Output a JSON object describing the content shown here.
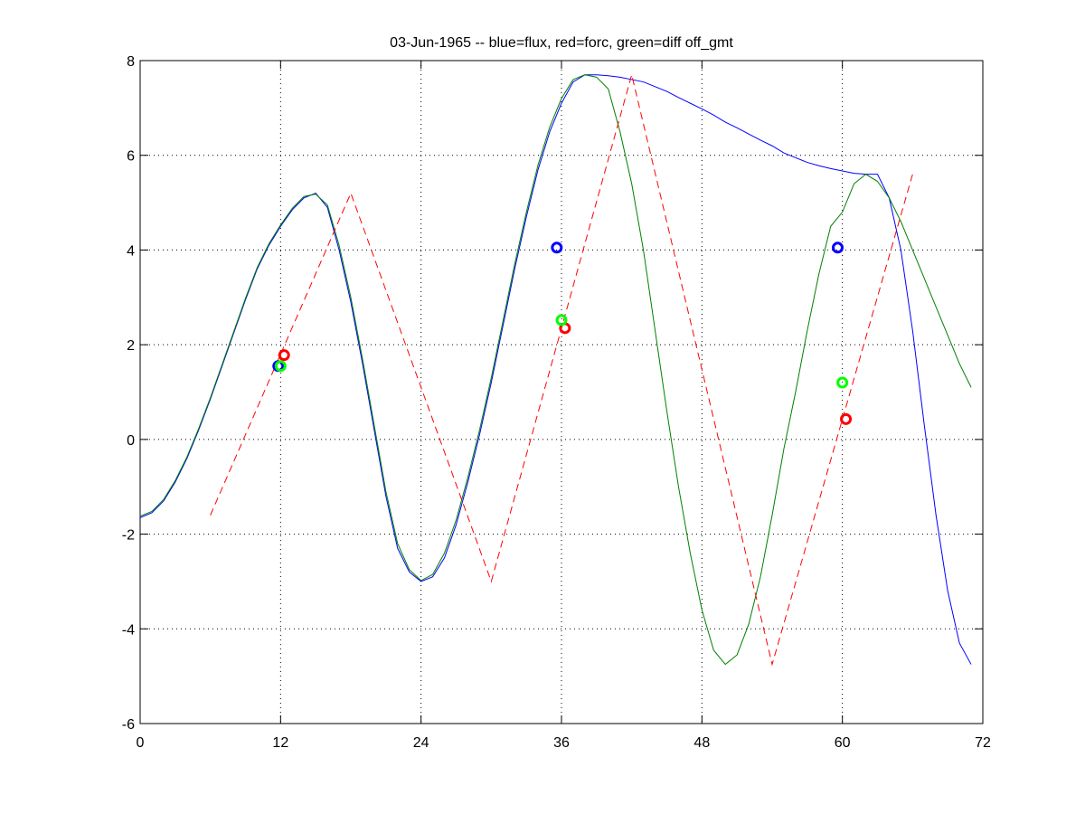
{
  "chart_data": {
    "type": "line",
    "title": "03-Jun-1965 -- blue=flux, red=forc, green=diff off_gmt",
    "xlim": [
      0,
      72
    ],
    "xticks": [
      0,
      12,
      24,
      36,
      48,
      60,
      72
    ],
    "ylim": [
      -6,
      8
    ],
    "yticks": [
      -6,
      -4,
      -2,
      0,
      2,
      4,
      6,
      8
    ],
    "grid": true,
    "series": [
      {
        "color": "#0000ff",
        "style": "solid",
        "x": [
          0,
          1,
          2,
          3,
          4,
          5,
          6,
          7,
          8,
          9,
          10,
          11,
          12,
          13,
          14,
          15,
          16,
          17,
          18,
          19,
          20,
          21,
          22,
          23,
          24,
          25,
          26,
          27,
          28,
          29,
          30,
          31,
          32,
          33,
          34,
          35,
          36,
          37,
          38,
          39,
          40,
          41,
          42,
          43,
          44,
          45,
          46,
          47,
          48,
          49,
          50,
          51,
          52,
          53,
          54,
          55,
          56,
          57,
          58,
          59,
          60,
          61,
          62,
          63,
          64,
          65,
          66,
          67,
          68,
          69,
          70,
          71
        ],
        "values": [
          -1.65,
          -1.55,
          -1.3,
          -0.9,
          -0.4,
          0.2,
          0.85,
          1.55,
          2.25,
          2.95,
          3.6,
          4.1,
          4.5,
          4.85,
          5.1,
          5.2,
          4.9,
          4.0,
          2.9,
          1.6,
          0.2,
          -1.2,
          -2.3,
          -2.8,
          -3.0,
          -2.9,
          -2.5,
          -1.8,
          -0.9,
          0.1,
          1.2,
          2.4,
          3.6,
          4.7,
          5.7,
          6.5,
          7.1,
          7.55,
          7.7,
          7.7,
          7.68,
          7.65,
          7.6,
          7.55,
          7.45,
          7.35,
          7.22,
          7.1,
          6.98,
          6.85,
          6.7,
          6.58,
          6.45,
          6.32,
          6.2,
          6.05,
          5.95,
          5.85,
          5.78,
          5.72,
          5.67,
          5.62,
          5.6,
          5.6,
          5.1,
          4.0,
          2.3,
          0.3,
          -1.6,
          -3.2,
          -4.3,
          -4.75
        ]
      },
      {
        "color": "#008000",
        "style": "solid",
        "x": [
          0,
          1,
          2,
          3,
          4,
          5,
          6,
          7,
          8,
          9,
          10,
          11,
          12,
          13,
          14,
          15,
          16,
          17,
          18,
          19,
          20,
          21,
          22,
          23,
          24,
          25,
          26,
          27,
          28,
          29,
          30,
          31,
          32,
          33,
          34,
          35,
          36,
          37,
          38,
          39,
          40,
          41,
          42,
          43,
          44,
          45,
          46,
          47,
          48,
          49,
          50,
          51,
          52,
          53,
          54,
          55,
          56,
          57,
          58,
          59,
          60,
          61,
          62,
          63,
          64,
          65,
          66,
          67,
          68,
          69,
          70,
          71
        ],
        "values": [
          -1.62,
          -1.52,
          -1.27,
          -0.87,
          -0.37,
          0.23,
          0.88,
          1.58,
          2.28,
          2.98,
          3.63,
          4.13,
          4.53,
          4.88,
          5.13,
          5.18,
          4.95,
          4.1,
          3.0,
          1.7,
          0.3,
          -1.1,
          -2.2,
          -2.75,
          -2.98,
          -2.85,
          -2.4,
          -1.7,
          -0.8,
          0.2,
          1.3,
          2.5,
          3.7,
          4.8,
          5.8,
          6.6,
          7.2,
          7.6,
          7.7,
          7.65,
          7.4,
          6.5,
          5.4,
          4.0,
          2.3,
          0.6,
          -1.0,
          -2.4,
          -3.6,
          -4.45,
          -4.75,
          -4.55,
          -3.9,
          -2.9,
          -1.6,
          -0.2,
          1.0,
          2.3,
          3.5,
          4.5,
          4.8,
          5.4,
          5.6,
          5.45,
          5.1,
          4.6,
          4.0,
          3.4,
          2.8,
          2.2,
          1.6,
          1.1
        ]
      },
      {
        "color": "#ff0000",
        "style": "dashed",
        "x": [
          6,
          18,
          30,
          42,
          54,
          66
        ],
        "values": [
          -1.6,
          5.2,
          -3.0,
          7.7,
          -4.75,
          5.6
        ]
      },
      {
        "color": "#0000ff",
        "marker": "circle",
        "x": [
          11.8,
          35.6,
          59.6
        ],
        "values": [
          1.55,
          4.05,
          4.05
        ]
      },
      {
        "color": "#ff0000",
        "marker": "circle",
        "x": [
          12.3,
          36.3,
          60.3
        ],
        "values": [
          1.78,
          2.35,
          0.43
        ]
      },
      {
        "color": "#00ff00",
        "marker": "circle",
        "x": [
          12.0,
          36.0,
          60.0
        ],
        "values": [
          1.55,
          2.52,
          1.2
        ]
      }
    ]
  }
}
